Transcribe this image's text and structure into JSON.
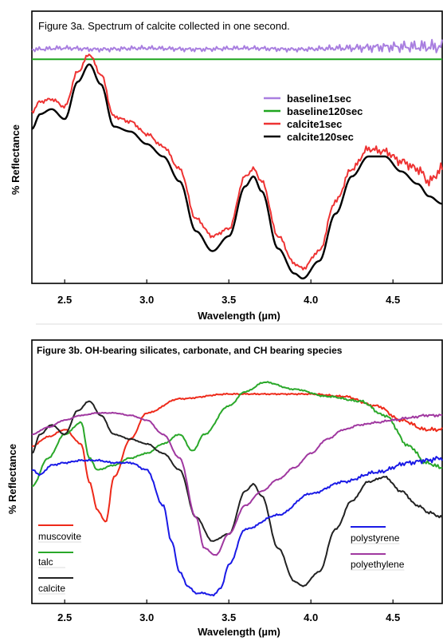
{
  "chart_data": [
    {
      "type": "line",
      "title": "Figure 3a. Spectrum of calcite collected in one second.",
      "xlabel": "Wavelength (µm)",
      "ylabel": "% Reflectance",
      "xlim": [
        2.3,
        4.8
      ],
      "xticks": [
        "2.5",
        "3.0",
        "3.5",
        "4.0",
        "4.5"
      ],
      "xtick_values": [
        2.5,
        3.0,
        3.5,
        4.0,
        4.5
      ],
      "ylim": [
        0,
        100
      ],
      "legend_position": "right, upper-middle",
      "series": [
        {
          "name": "baseline1sec",
          "color": "#a97fe0",
          "noise": 1.0,
          "x": [
            2.3,
            2.5,
            2.7,
            3.0,
            3.3,
            3.6,
            3.9,
            4.2,
            4.5,
            4.8
          ],
          "y": [
            93,
            93.5,
            93,
            93.5,
            93,
            93.5,
            93,
            93.5,
            94,
            94
          ]
        },
        {
          "name": "baseline120sec",
          "color": "#1fa51f",
          "noise": 0,
          "x": [
            2.3,
            4.8
          ],
          "y": [
            89,
            89
          ]
        },
        {
          "name": "calcite1sec",
          "color": "#ee3333",
          "noise": 0.8,
          "x": [
            2.3,
            2.35,
            2.42,
            2.5,
            2.58,
            2.65,
            2.72,
            2.8,
            2.9,
            3.0,
            3.1,
            3.2,
            3.3,
            3.4,
            3.5,
            3.6,
            3.65,
            3.7,
            3.8,
            3.9,
            3.95,
            4.05,
            4.15,
            4.25,
            4.35,
            4.45,
            4.55,
            4.65,
            4.72,
            4.8
          ],
          "y": [
            68,
            72,
            73,
            70,
            84,
            91,
            83,
            66,
            64,
            59,
            54,
            45,
            25,
            18,
            21,
            42,
            45,
            40,
            18,
            7,
            5,
            12,
            32,
            45,
            53,
            52,
            48,
            45,
            40,
            45
          ]
        },
        {
          "name": "calcite120sec",
          "color": "#000000",
          "noise": 0,
          "x": [
            2.3,
            2.35,
            2.42,
            2.5,
            2.58,
            2.65,
            2.72,
            2.8,
            2.9,
            3.0,
            3.1,
            3.2,
            3.3,
            3.4,
            3.5,
            3.6,
            3.65,
            3.7,
            3.8,
            3.9,
            3.95,
            4.05,
            4.15,
            4.25,
            4.35,
            4.45,
            4.55,
            4.65,
            4.72,
            4.8
          ],
          "y": [
            61,
            67,
            69,
            65,
            80,
            87,
            79,
            62,
            60,
            55,
            50,
            40,
            20,
            12,
            18,
            38,
            42,
            36,
            13,
            3,
            1,
            8,
            27,
            42,
            50,
            50,
            44,
            39,
            34,
            31
          ]
        }
      ]
    },
    {
      "type": "line",
      "title": "Figure 3b. OH-bearing silicates, carbonate, and CH bearing species",
      "xlabel": "Wavelength (µm)",
      "ylabel": "% Reflectance",
      "xlim": [
        2.3,
        4.8
      ],
      "xticks": [
        "2.5",
        "3.0",
        "3.5",
        "4.0",
        "4.5"
      ],
      "xtick_values": [
        2.5,
        3.0,
        3.5,
        4.0,
        4.5
      ],
      "ylim": [
        0,
        100
      ],
      "legend_position": "lower-left and lower-right",
      "series": [
        {
          "name": "muscovite",
          "color": "#ee2a1a",
          "noise": 0.3,
          "x": [
            2.3,
            2.4,
            2.5,
            2.6,
            2.65,
            2.7,
            2.75,
            2.8,
            2.9,
            3.0,
            3.2,
            3.5,
            4.0,
            4.2,
            4.4,
            4.55,
            4.7,
            4.8
          ],
          "y": [
            65,
            69,
            72,
            66,
            50,
            38,
            33,
            52,
            68,
            79,
            85,
            87,
            87,
            86,
            82,
            76,
            72,
            72
          ]
        },
        {
          "name": "talc",
          "color": "#2aa82a",
          "noise": 0.3,
          "x": [
            2.3,
            2.4,
            2.5,
            2.6,
            2.65,
            2.7,
            2.8,
            2.9,
            3.0,
            3.1,
            3.2,
            3.28,
            3.35,
            3.5,
            3.6,
            3.72,
            3.9,
            4.1,
            4.3,
            4.45,
            4.6,
            4.7,
            4.8
          ],
          "y": [
            48,
            60,
            70,
            75,
            60,
            55,
            57,
            60,
            62,
            66,
            70,
            63,
            70,
            82,
            88,
            92,
            89,
            86,
            84,
            78,
            65,
            58,
            56
          ]
        },
        {
          "name": "calcite",
          "color": "#222222",
          "noise": 0.2,
          "x": [
            2.3,
            2.35,
            2.42,
            2.5,
            2.58,
            2.65,
            2.72,
            2.8,
            2.9,
            3.0,
            3.1,
            3.2,
            3.3,
            3.4,
            3.5,
            3.6,
            3.65,
            3.7,
            3.8,
            3.9,
            3.95,
            4.05,
            4.15,
            4.25,
            4.35,
            4.45,
            4.55,
            4.65,
            4.72,
            4.8
          ],
          "y": [
            62,
            70,
            74,
            70,
            80,
            84,
            78,
            70,
            68,
            66,
            62,
            55,
            35,
            25,
            28,
            46,
            49,
            44,
            22,
            8,
            6,
            12,
            30,
            42,
            50,
            52,
            46,
            40,
            37,
            35
          ]
        },
        {
          "name": "polystyrene",
          "color": "#1a1ae6",
          "noise": 0.4,
          "x": [
            2.3,
            2.35,
            2.42,
            2.5,
            2.6,
            2.7,
            2.8,
            2.9,
            3.0,
            3.1,
            3.15,
            3.2,
            3.25,
            3.3,
            3.35,
            3.4,
            3.45,
            3.5,
            3.6,
            3.8,
            4.0,
            4.2,
            4.4,
            4.6,
            4.7,
            4.8
          ],
          "y": [
            55,
            53,
            57,
            58,
            59,
            59,
            58,
            58,
            55,
            40,
            25,
            12,
            6,
            3,
            3,
            2,
            5,
            15,
            30,
            36,
            45,
            50,
            54,
            58,
            59,
            60
          ]
        },
        {
          "name": "polyethylene",
          "color": "#a038a0",
          "noise": 0.2,
          "x": [
            2.3,
            2.4,
            2.5,
            2.6,
            2.7,
            2.8,
            2.9,
            3.0,
            3.1,
            3.2,
            3.3,
            3.35,
            3.42,
            3.5,
            3.6,
            3.7,
            3.8,
            3.9,
            4.0,
            4.1,
            4.2,
            4.3,
            4.4,
            4.5,
            4.6,
            4.7,
            4.8
          ],
          "y": [
            70,
            73,
            76,
            78,
            79,
            79,
            78,
            76,
            70,
            60,
            35,
            22,
            19,
            28,
            40,
            46,
            51,
            56,
            62,
            68,
            72,
            74,
            75,
            76,
            77,
            78,
            78
          ]
        }
      ]
    }
  ]
}
